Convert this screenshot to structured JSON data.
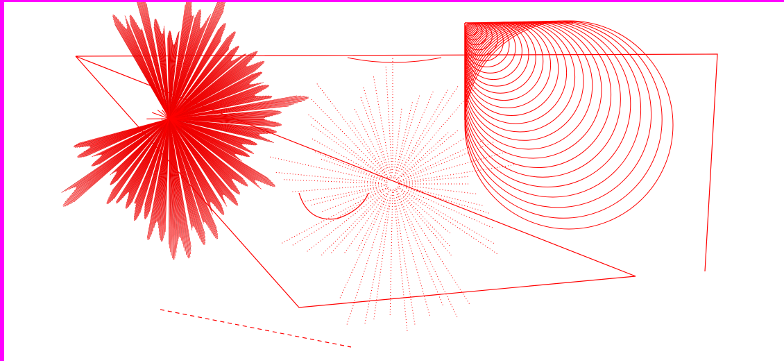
{
  "canvas": {
    "border_color": "#ff00ff",
    "background": "#ffffff",
    "stroke_color": "#ff0000",
    "dark_stroke_color": "#cc0000"
  },
  "figures": [
    {
      "kind": "quadrilateral-outline"
    },
    {
      "kind": "radial-fan-burst"
    },
    {
      "kind": "dotted-ray-burst"
    },
    {
      "kind": "nested-circles"
    },
    {
      "kind": "arc"
    },
    {
      "kind": "dashed-line"
    }
  ]
}
